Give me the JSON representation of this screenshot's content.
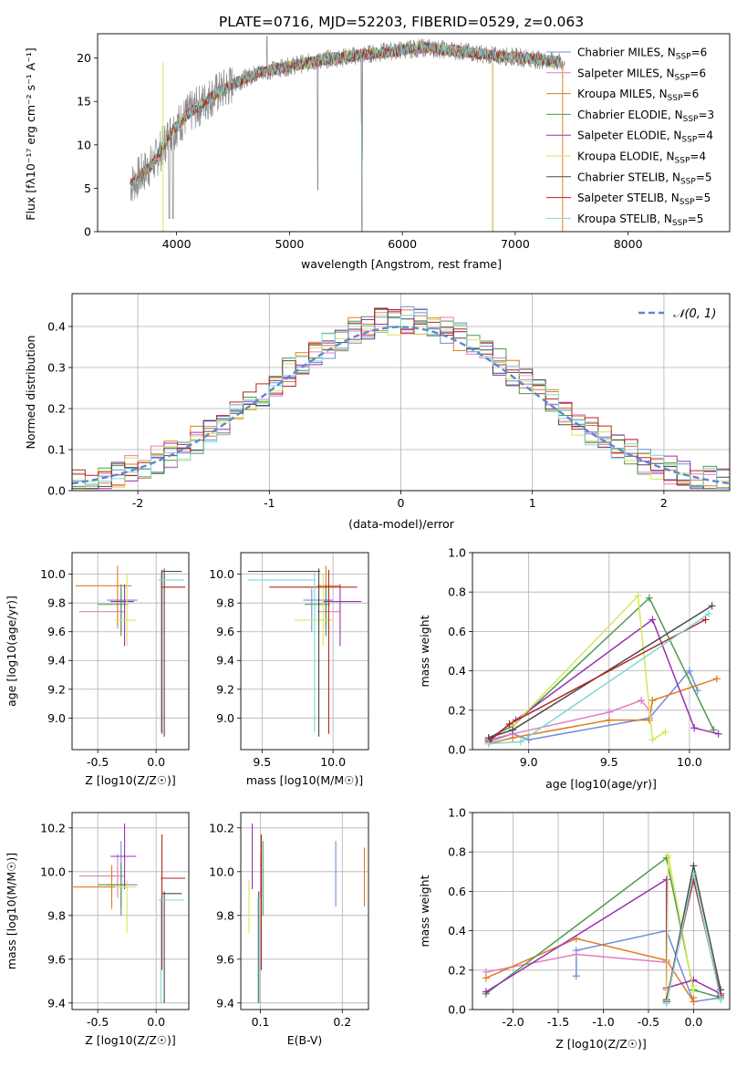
{
  "title": "PLATE=0716, MJD=52203, FIBERID=0529, z=0.063",
  "colors": [
    "#6f8fd8",
    "#e27fc0",
    "#e07b22",
    "#4c9a4c",
    "#9a2fb0",
    "#d7e65a",
    "#4a4a4a",
    "#b3261e",
    "#7fd6d6"
  ],
  "spectrum": {
    "xlabel": "wavelength [Angstrom, rest frame]",
    "ylabel": "Flux [fλ10⁻¹⁷ erg cm⁻² s⁻¹ A⁻¹]",
    "xlim": [
      3300,
      8900
    ],
    "ylim": [
      0,
      22.8
    ],
    "xticks": [
      4000,
      5000,
      6000,
      7000,
      8000
    ],
    "yticks": [
      0,
      5,
      10,
      15,
      20
    ],
    "legend": [
      {
        "base": "Chabrier MILES, N",
        "sub": "SSP",
        "tail": "=6",
        "color": "#6f8fd8"
      },
      {
        "base": "Salpeter MILES, N",
        "sub": "SSP",
        "tail": "=6",
        "color": "#e27fc0"
      },
      {
        "base": "Kroupa MILES, N",
        "sub": "SSP",
        "tail": "=6",
        "color": "#e07b22"
      },
      {
        "base": "Chabrier ELODIE, N",
        "sub": "SSP",
        "tail": "=3",
        "color": "#4c9a4c"
      },
      {
        "base": "Salpeter ELODIE, N",
        "sub": "SSP",
        "tail": "=4",
        "color": "#9a2fb0"
      },
      {
        "base": "Kroupa ELODIE, N",
        "sub": "SSP",
        "tail": "=4",
        "color": "#d7e65a"
      },
      {
        "base": "Chabrier STELIB, N",
        "sub": "SSP",
        "tail": "=5",
        "color": "#4a4a4a"
      },
      {
        "base": "Salpeter STELIB, N",
        "sub": "SSP",
        "tail": "=5",
        "color": "#b3261e"
      },
      {
        "base": "Kroupa STELIB, N",
        "sub": "SSP",
        "tail": "=5",
        "color": "#7fd6d6"
      }
    ]
  },
  "chart_data": [
    {
      "type": "line",
      "title": "PLATE=0716, MJD=52203, FIBERID=0529, z=0.063",
      "xlabel": "wavelength [Angstrom, rest frame]",
      "ylabel": "Flux [fλ10⁻¹⁷ erg cm⁻² s⁻¹ A⁻¹]",
      "xlim": [
        3300,
        8900
      ],
      "ylim": [
        0,
        22.8
      ],
      "grid": false,
      "legend_position": "right",
      "continuum": {
        "x": [
          3600,
          3800,
          3950,
          4100,
          4300,
          4500,
          4700,
          4900,
          5100,
          5300,
          5600,
          5900,
          6200,
          6500,
          6800,
          7100,
          7400,
          7700
        ],
        "y": [
          5.5,
          8.0,
          11.5,
          13.5,
          15.5,
          17.0,
          18.2,
          18.8,
          19.3,
          19.8,
          20.3,
          20.8,
          21.2,
          20.8,
          20.3,
          20.0,
          19.5,
          19.8
        ]
      },
      "data_range": [
        3590,
        7440
      ],
      "model_range": [
        3590,
        7410
      ]
    },
    {
      "type": "bar",
      "xlabel": "(data-model)/error",
      "ylabel": "Normed distribution",
      "xlim": [
        -2.5,
        2.5
      ],
      "ylim": [
        0,
        0.48
      ],
      "xticks": [
        -2,
        -1,
        0,
        1,
        2
      ],
      "yticks": [
        0.0,
        0.1,
        0.2,
        0.3,
        0.4
      ],
      "grid": true,
      "legend_position": "top-right",
      "reference_curve": "𝒩(0, 1)",
      "bin_width": 0.1,
      "approximate_distribution": "standard normal",
      "series_count": 9
    },
    {
      "type": "scatter",
      "xlabel": "Z [log10(Z/Z☉)]",
      "ylabel": "age [log10(age/yr)]",
      "xlim": [
        -0.72,
        0.28
      ],
      "ylim": [
        8.78,
        10.15
      ],
      "xticks": [
        -0.5,
        0.0
      ],
      "yticks": [
        9.0,
        9.2,
        9.4,
        9.6,
        9.8,
        10.0
      ],
      "grid": true,
      "points": [
        {
          "x": -0.3,
          "y": 9.82,
          "x_err": [
            0.12,
            0.14
          ],
          "y_err": [
            0.22,
            0.08
          ]
        },
        {
          "x": -0.33,
          "y": 9.74,
          "x_err": [
            0.33,
            0.06
          ],
          "y_err": [
            0.12,
            0.09
          ]
        },
        {
          "x": -0.33,
          "y": 9.92,
          "x_err": [
            0.36,
            0.12
          ],
          "y_err": [
            0.28,
            0.14
          ]
        },
        {
          "x": -0.3,
          "y": 9.79,
          "x_err": [
            0.2,
            0.06
          ],
          "y_err": [
            0.22,
            0.14
          ]
        },
        {
          "x": -0.27,
          "y": 9.81,
          "x_err": [
            0.12,
            0.08
          ],
          "y_err": [
            0.31,
            0.12
          ]
        },
        {
          "x": -0.25,
          "y": 9.68,
          "x_err": [
            0.1,
            0.08
          ],
          "y_err": [
            0.18,
            0.32
          ]
        },
        {
          "x": 0.07,
          "y": 10.02,
          "x_err": [
            0.02,
            0.15
          ],
          "y_err": [
            1.15,
            0.02
          ]
        },
        {
          "x": 0.05,
          "y": 9.91,
          "x_err": [
            0.01,
            0.2
          ],
          "y_err": [
            1.02,
            0.12
          ]
        },
        {
          "x": 0.04,
          "y": 9.96,
          "x_err": [
            0.02,
            0.2
          ],
          "y_err": [
            1.06,
            0.06
          ]
        }
      ]
    },
    {
      "type": "scatter",
      "xlabel": "mass [log10(M/M☉)]",
      "ylabel": "",
      "xlim": [
        9.35,
        10.25
      ],
      "ylim": [
        8.78,
        10.15
      ],
      "xticks": [
        9.5,
        10.0
      ],
      "yticks": [
        9.0,
        9.2,
        9.4,
        9.6,
        9.8,
        10.0
      ],
      "grid": true,
      "points": [
        {
          "x": 9.85,
          "y": 9.82,
          "x_err": [
            0.06,
            0.15
          ],
          "y_err": [
            0.22,
            0.08
          ]
        },
        {
          "x": 9.95,
          "y": 9.74,
          "x_err": [
            0.06,
            0.1
          ],
          "y_err": [
            0.12,
            0.09
          ]
        },
        {
          "x": 9.95,
          "y": 9.92,
          "x_err": [
            0.06,
            0.1
          ],
          "y_err": [
            0.28,
            0.14
          ]
        },
        {
          "x": 9.95,
          "y": 9.79,
          "x_err": [
            0.15,
            0.03
          ],
          "y_err": [
            0.22,
            0.14
          ]
        },
        {
          "x": 10.05,
          "y": 9.81,
          "x_err": [
            0.12,
            0.15
          ],
          "y_err": [
            0.31,
            0.12
          ]
        },
        {
          "x": 9.93,
          "y": 9.68,
          "x_err": [
            0.2,
            0.07
          ],
          "y_err": [
            0.18,
            0.32
          ]
        },
        {
          "x": 9.9,
          "y": 10.02,
          "x_err": [
            0.5,
            0.01
          ],
          "y_err": [
            1.15,
            0.02
          ]
        },
        {
          "x": 9.97,
          "y": 9.91,
          "x_err": [
            0.42,
            0.2
          ],
          "y_err": [
            1.02,
            0.12
          ]
        },
        {
          "x": 9.87,
          "y": 9.96,
          "x_err": [
            0.47,
            0.01
          ],
          "y_err": [
            1.06,
            0.06
          ]
        }
      ]
    },
    {
      "type": "line",
      "xlabel": "age [log10(age/yr)]",
      "ylabel": "mass weight",
      "xlim": [
        8.65,
        10.25
      ],
      "ylim": [
        0,
        1
      ],
      "xticks": [
        9.0,
        9.5,
        10.0
      ],
      "yticks": [
        0.0,
        0.2,
        0.4,
        0.6,
        0.8,
        1.0
      ],
      "grid": true,
      "series": [
        {
          "x": [
            8.75,
            8.9,
            9.0,
            9.75,
            10.0,
            10.05
          ],
          "y": [
            0.04,
            0.08,
            0.05,
            0.16,
            0.4,
            0.3
          ]
        },
        {
          "x": [
            8.75,
            8.9,
            9.5,
            9.7,
            9.75
          ],
          "y": [
            0.05,
            0.08,
            0.19,
            0.25,
            0.2
          ]
        },
        {
          "x": [
            8.75,
            8.9,
            9.5,
            9.75,
            9.77,
            10.17
          ],
          "y": [
            0.03,
            0.06,
            0.15,
            0.15,
            0.25,
            0.36
          ]
        },
        {
          "x": [
            8.75,
            8.9,
            9.75,
            10.15
          ],
          "y": [
            0.06,
            0.12,
            0.77,
            0.1
          ]
        },
        {
          "x": [
            8.75,
            8.92,
            9.77,
            10.03,
            10.18
          ],
          "y": [
            0.05,
            0.15,
            0.66,
            0.11,
            0.08
          ]
        },
        {
          "x": [
            8.9,
            9.68,
            9.77,
            9.85
          ],
          "y": [
            0.12,
            0.78,
            0.05,
            0.09
          ]
        },
        {
          "x": [
            8.75,
            8.9,
            10.14
          ],
          "y": [
            0.06,
            0.1,
            0.73
          ]
        },
        {
          "x": [
            8.75,
            8.88,
            10.1
          ],
          "y": [
            0.04,
            0.13,
            0.66
          ]
        },
        {
          "x": [
            8.75,
            8.95,
            10.12
          ],
          "y": [
            0.03,
            0.04,
            0.69
          ]
        }
      ]
    },
    {
      "type": "scatter",
      "xlabel": "Z [log10(Z/Z☉)]",
      "ylabel": "mass [log10(M/M☉)]",
      "xlim": [
        -0.72,
        0.28
      ],
      "ylim": [
        9.37,
        10.27
      ],
      "xticks": [
        -0.5,
        0.0
      ],
      "yticks": [
        9.4,
        9.6,
        9.8,
        10.0,
        10.2
      ],
      "grid": true,
      "points": [
        {
          "x": -0.3,
          "y": 9.94,
          "x_err": [
            0.12,
            0.14
          ],
          "y_err": [
            0.1,
            0.2
          ]
        },
        {
          "x": -0.33,
          "y": 9.98,
          "x_err": [
            0.33,
            0.06
          ],
          "y_err": [
            0.1,
            0.1
          ]
        },
        {
          "x": -0.38,
          "y": 9.93,
          "x_err": [
            0.33,
            0.14
          ],
          "y_err": [
            0.1,
            0.1
          ]
        },
        {
          "x": -0.3,
          "y": 9.94,
          "x_err": [
            0.2,
            0.06
          ],
          "y_err": [
            0.14,
            0.1
          ]
        },
        {
          "x": -0.27,
          "y": 10.07,
          "x_err": [
            0.12,
            0.1
          ],
          "y_err": [
            0.15,
            0.15
          ]
        },
        {
          "x": -0.25,
          "y": 9.93,
          "x_err": [
            0.1,
            0.08
          ],
          "y_err": [
            0.21,
            0.03
          ]
        },
        {
          "x": 0.07,
          "y": 9.9,
          "x_err": [
            0.02,
            0.15
          ],
          "y_err": [
            0.5,
            0.01
          ]
        },
        {
          "x": 0.05,
          "y": 9.97,
          "x_err": [
            0.01,
            0.2
          ],
          "y_err": [
            0.42,
            0.2
          ]
        },
        {
          "x": 0.04,
          "y": 9.87,
          "x_err": [
            0.02,
            0.2
          ],
          "y_err": [
            0.47,
            0.01
          ]
        }
      ]
    },
    {
      "type": "scatter",
      "xlabel": "E(B-V)",
      "ylabel": "",
      "xlim": [
        0.076,
        0.232
      ],
      "ylim": [
        9.37,
        10.27
      ],
      "xticks": [
        0.1,
        0.2
      ],
      "yticks": [
        9.4,
        9.6,
        9.8,
        10.0,
        10.2
      ],
      "grid": true,
      "points": [
        {
          "x": 0.192,
          "y": 9.94,
          "y_err": [
            0.1,
            0.2
          ]
        },
        {
          "x": 0.1,
          "y": 9.98,
          "y_err": [
            0.1,
            0.1
          ]
        },
        {
          "x": 0.227,
          "y": 9.97,
          "y_err": [
            0.13,
            0.14
          ]
        },
        {
          "x": 0.103,
          "y": 9.94,
          "y_err": [
            0.14,
            0.2
          ]
        },
        {
          "x": 0.09,
          "y": 10.07,
          "y_err": [
            0.15,
            0.15
          ]
        },
        {
          "x": 0.086,
          "y": 9.93,
          "y_err": [
            0.21,
            0.03
          ]
        },
        {
          "x": 0.098,
          "y": 9.9,
          "y_err": [
            0.5,
            0.01
          ]
        },
        {
          "x": 0.101,
          "y": 9.97,
          "y_err": [
            0.42,
            0.2
          ]
        },
        {
          "x": 0.097,
          "y": 9.87,
          "y_err": [
            0.47,
            0.01
          ]
        }
      ]
    },
    {
      "type": "line",
      "xlabel": "Z [log10(Z/Z☉)]",
      "ylabel": "mass weight",
      "xlim": [
        -2.45,
        0.4
      ],
      "ylim": [
        0,
        1
      ],
      "xticks": [
        -2.0,
        -1.5,
        -1.0,
        -0.5,
        0.0
      ],
      "yticks": [
        0.0,
        0.2,
        0.4,
        0.6,
        0.8,
        1.0
      ],
      "grid": true,
      "series": [
        {
          "x": [
            -1.3,
            -1.3,
            -0.3,
            0.0,
            0.3
          ],
          "y": [
            0.17,
            0.3,
            0.4,
            0.04,
            0.06
          ]
        },
        {
          "x": [
            -2.3,
            -1.3,
            -0.3,
            -0.3
          ],
          "y": [
            0.19,
            0.28,
            0.24,
            0.1
          ]
        },
        {
          "x": [
            -2.3,
            -1.3,
            -0.3,
            0.0,
            0.0
          ],
          "y": [
            0.16,
            0.36,
            0.25,
            0.04,
            0.06
          ]
        },
        {
          "x": [
            -2.3,
            -0.3,
            0.0,
            0.3
          ],
          "y": [
            0.08,
            0.77,
            0.1,
            0.06
          ]
        },
        {
          "x": [
            -2.3,
            -0.3,
            -0.3,
            0.0,
            0.3
          ],
          "y": [
            0.09,
            0.66,
            0.11,
            0.15,
            0.08
          ]
        },
        {
          "x": [
            -0.3,
            -0.28,
            0.0,
            0.0
          ],
          "y": [
            0.05,
            0.78,
            0.09,
            0.12
          ]
        },
        {
          "x": [
            -0.3,
            0.0,
            0.3
          ],
          "y": [
            0.04,
            0.73,
            0.1
          ]
        },
        {
          "x": [
            -0.3,
            0.0,
            0.3
          ],
          "y": [
            0.05,
            0.66,
            0.07
          ]
        },
        {
          "x": [
            -0.3,
            0.0,
            0.3
          ],
          "y": [
            0.03,
            0.69,
            0.05
          ]
        }
      ]
    }
  ],
  "histogram": {
    "xlabel": "(data-model)/error",
    "ylabel": "Normed distribution",
    "legend": {
      "label": "𝒩(0, 1)"
    }
  }
}
